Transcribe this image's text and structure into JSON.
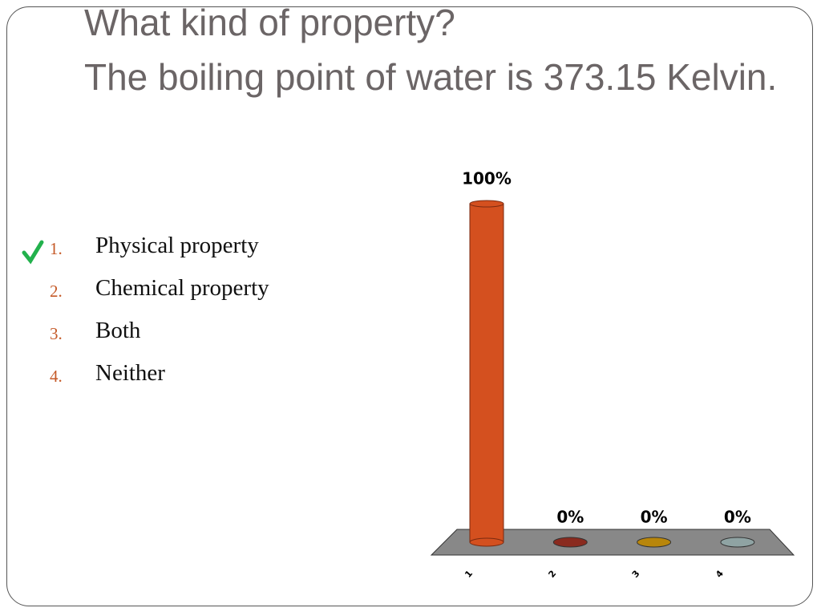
{
  "title_lines": [
    "What kind of property?",
    "The boiling point of water is 373.15 Kelvin."
  ],
  "options": [
    {
      "number": "1.",
      "text": "Physical property"
    },
    {
      "number": "2.",
      "text": "Chemical property"
    },
    {
      "number": "3.",
      "text": "Both"
    },
    {
      "number": "4.",
      "text": "Neither"
    }
  ],
  "chart_data": {
    "type": "bar",
    "categories": [
      "1",
      "2",
      "3",
      "4"
    ],
    "values": [
      100,
      0,
      0,
      0
    ],
    "value_labels": [
      "100%",
      "0%",
      "0%",
      "0%"
    ],
    "colors": [
      "#d4501f",
      "#8a2a1f",
      "#b8860b",
      "#8fa3a3"
    ]
  }
}
